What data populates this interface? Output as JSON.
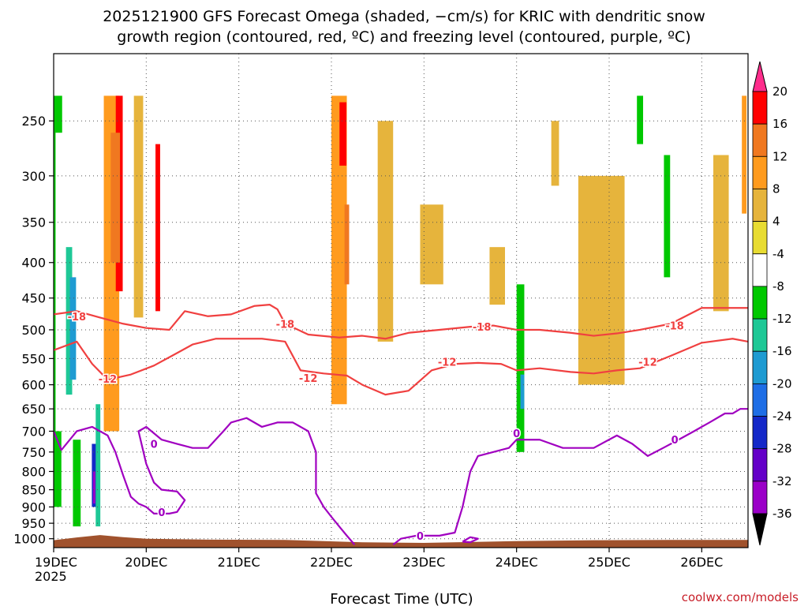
{
  "chart_data": {
    "type": "heatmap",
    "title_line1": "2025121900 GFS Forecast Omega (shaded, −cm/s) for KRIC with dendritic snow",
    "title_line2": "growth region (contoured, red, ºC) and freezing level (contoured, purple, ºC)",
    "xlabel": "Forecast Time (UTC)",
    "ylabel": "",
    "x_unit": "hours since 19DEC2025 00Z",
    "xlim": [
      0,
      180
    ],
    "ylim": [
      1030,
      200
    ],
    "x_ticks": [
      {
        "h": 0,
        "label": "19DEC",
        "sub": "2025"
      },
      {
        "h": 24,
        "label": "20DEC",
        "sub": ""
      },
      {
        "h": 48,
        "label": "21DEC",
        "sub": ""
      },
      {
        "h": 72,
        "label": "22DEC",
        "sub": ""
      },
      {
        "h": 96,
        "label": "23DEC",
        "sub": ""
      },
      {
        "h": 120,
        "label": "24DEC",
        "sub": ""
      },
      {
        "h": 144,
        "label": "25DEC",
        "sub": ""
      },
      {
        "h": 168,
        "label": "26DEC",
        "sub": ""
      }
    ],
    "y_ticks": [
      250,
      300,
      350,
      400,
      450,
      500,
      550,
      600,
      650,
      700,
      750,
      800,
      850,
      900,
      950,
      1000
    ],
    "y_scale": "log",
    "grid": true,
    "colorbar": {
      "levels": [
        20,
        16,
        12,
        8,
        4,
        -4,
        -8,
        -12,
        -16,
        -20,
        -24,
        -28,
        -32,
        -36
      ],
      "colors": [
        "#ff3264",
        "#ff0000",
        "#f07820",
        "#ff9b1e",
        "#e6b43c",
        "#e8dc32",
        "#ffffff",
        "#00c800",
        "#1ec896",
        "#1e9bd2",
        "#1e6ee6",
        "#1428c8",
        "#6400c8",
        "#9b00c8",
        "#a0a0a0",
        "#000000"
      ],
      "top_color": "#ff2d8c",
      "bottom_color": "#000000"
    },
    "omega_regions": [
      {
        "h": 1,
        "p0": 230,
        "p1": 900,
        "v": -12,
        "w": 1.2
      },
      {
        "h": 2,
        "p0": 260,
        "p1": 700,
        "v": -8,
        "w": 1.5
      },
      {
        "h": 4,
        "p0": 380,
        "p1": 620,
        "v": -16,
        "w": 0.8
      },
      {
        "h": 5,
        "p0": 420,
        "p1": 590,
        "v": -20,
        "w": 0.8
      },
      {
        "h": 3,
        "p0": 700,
        "p1": 960,
        "v": -8,
        "w": 1
      },
      {
        "h": 6,
        "p0": 720,
        "p1": 960,
        "v": -12,
        "w": 1
      },
      {
        "h": 10.5,
        "p0": 730,
        "p1": 900,
        "v": -28,
        "w": 0.6
      },
      {
        "h": 10.5,
        "p0": 800,
        "p1": 890,
        "v": -36,
        "w": 0.3
      },
      {
        "h": 11.5,
        "p0": 640,
        "p1": 960,
        "v": -16,
        "w": 0.6
      },
      {
        "h": 9,
        "p0": 230,
        "p1": 540,
        "v": -8,
        "w": 0.8
      },
      {
        "h": 15,
        "p0": 230,
        "p1": 700,
        "v": 8,
        "w": 2
      },
      {
        "h": 17,
        "p0": 230,
        "p1": 440,
        "v": 16,
        "w": 0.9
      },
      {
        "h": 16,
        "p0": 260,
        "p1": 400,
        "v": 12,
        "w": 1.2
      },
      {
        "h": 22,
        "p0": 230,
        "p1": 480,
        "v": 4,
        "w": 1.2
      },
      {
        "h": 27,
        "p0": 270,
        "p1": 470,
        "v": 16,
        "w": 0.6
      },
      {
        "h": 33,
        "p0": 280,
        "p1": 430,
        "v": -8,
        "w": 0.5
      },
      {
        "h": 38,
        "p0": 400,
        "p1": 620,
        "v": -8,
        "w": 0.5
      },
      {
        "h": 60,
        "p0": 690,
        "p1": 780,
        "v": -8,
        "w": 0.5
      },
      {
        "h": 74,
        "p0": 230,
        "p1": 640,
        "v": 8,
        "w": 2
      },
      {
        "h": 75,
        "p0": 235,
        "p1": 290,
        "v": 16,
        "w": 0.9
      },
      {
        "h": 76,
        "p0": 330,
        "p1": 430,
        "v": 12,
        "w": 0.6
      },
      {
        "h": 86,
        "p0": 250,
        "p1": 520,
        "v": 4,
        "w": 2
      },
      {
        "h": 98,
        "p0": 330,
        "p1": 430,
        "v": 4,
        "w": 3
      },
      {
        "h": 115,
        "p0": 380,
        "p1": 460,
        "v": 4,
        "w": 2
      },
      {
        "h": 121,
        "p0": 430,
        "p1": 750,
        "v": -12,
        "w": 1
      },
      {
        "h": 121.5,
        "p0": 580,
        "p1": 650,
        "v": -20,
        "w": 0.5
      },
      {
        "h": 130,
        "p0": 250,
        "p1": 310,
        "v": 4,
        "w": 1
      },
      {
        "h": 142,
        "p0": 300,
        "p1": 600,
        "v": 4,
        "w": 6
      },
      {
        "h": 152,
        "p0": 230,
        "p1": 270,
        "v": -12,
        "w": 0.8
      },
      {
        "h": 149,
        "p0": 660,
        "p1": 760,
        "v": -8,
        "w": 0.6
      },
      {
        "h": 159,
        "p0": 280,
        "p1": 420,
        "v": -12,
        "w": 0.8
      },
      {
        "h": 165,
        "p0": 230,
        "p1": 400,
        "v": -8,
        "w": 0.8
      },
      {
        "h": 173,
        "p0": 280,
        "p1": 470,
        "v": 4,
        "w": 2
      },
      {
        "h": 179,
        "p0": 230,
        "p1": 340,
        "v": 8,
        "w": 0.6
      },
      {
        "h": 178,
        "p0": 680,
        "p1": 720,
        "v": -8,
        "w": 0.6
      }
    ],
    "contours": [
      {
        "name": "-18",
        "color": "#f04040",
        "label": "-18",
        "label_positions": [
          [
            6,
            478
          ],
          [
            60,
            490
          ],
          [
            111,
            495
          ],
          [
            161,
            493
          ]
        ],
        "points": [
          [
            0,
            475
          ],
          [
            6,
            470
          ],
          [
            12,
            480
          ],
          [
            18,
            490
          ],
          [
            24,
            497
          ],
          [
            30,
            500
          ],
          [
            34,
            470
          ],
          [
            40,
            478
          ],
          [
            46,
            475
          ],
          [
            52,
            462
          ],
          [
            56,
            460
          ],
          [
            58,
            467
          ],
          [
            60,
            490
          ],
          [
            66,
            508
          ],
          [
            74,
            513
          ],
          [
            80,
            510
          ],
          [
            86,
            515
          ],
          [
            92,
            505
          ],
          [
            100,
            500
          ],
          [
            108,
            495
          ],
          [
            114,
            493
          ],
          [
            120,
            500
          ],
          [
            126,
            500
          ],
          [
            134,
            505
          ],
          [
            140,
            510
          ],
          [
            146,
            506
          ],
          [
            152,
            500
          ],
          [
            160,
            490
          ],
          [
            168,
            465
          ],
          [
            176,
            465
          ],
          [
            180,
            465
          ]
        ]
      },
      {
        "name": "-12",
        "color": "#f04040",
        "label": "-12",
        "label_positions": [
          [
            14,
            588
          ],
          [
            66,
            587
          ],
          [
            102,
            556
          ],
          [
            154,
            556
          ]
        ],
        "points": [
          [
            0,
            535
          ],
          [
            6,
            520
          ],
          [
            10,
            560
          ],
          [
            14,
            590
          ],
          [
            20,
            580
          ],
          [
            26,
            563
          ],
          [
            32,
            540
          ],
          [
            36,
            525
          ],
          [
            42,
            515
          ],
          [
            48,
            515
          ],
          [
            54,
            515
          ],
          [
            60,
            520
          ],
          [
            64,
            572
          ],
          [
            70,
            578
          ],
          [
            76,
            582
          ],
          [
            80,
            600
          ],
          [
            86,
            620
          ],
          [
            92,
            612
          ],
          [
            98,
            572
          ],
          [
            104,
            560
          ],
          [
            110,
            558
          ],
          [
            116,
            560
          ],
          [
            120,
            572
          ],
          [
            126,
            568
          ],
          [
            134,
            575
          ],
          [
            140,
            578
          ],
          [
            146,
            572
          ],
          [
            152,
            568
          ],
          [
            160,
            545
          ],
          [
            168,
            522
          ],
          [
            176,
            515
          ],
          [
            180,
            520
          ]
        ]
      },
      {
        "name": "0",
        "color": "#a000c0",
        "label": "0",
        "label_positions": [
          [
            26,
            730
          ],
          [
            28,
            915
          ],
          [
            95,
            990
          ],
          [
            120,
            705
          ],
          [
            161,
            720
          ]
        ],
        "points": [
          [
            0,
            700
          ],
          [
            2,
            745
          ],
          [
            6,
            700
          ],
          [
            10,
            690
          ],
          [
            12,
            700
          ],
          [
            14,
            710
          ],
          [
            16,
            750
          ],
          [
            18,
            810
          ],
          [
            20,
            870
          ],
          [
            22,
            890
          ],
          [
            24,
            900
          ],
          [
            26,
            920
          ],
          [
            28,
            920
          ],
          [
            30,
            920
          ],
          [
            32,
            915
          ],
          [
            34,
            880
          ],
          [
            32,
            855
          ],
          [
            28,
            850
          ],
          [
            26,
            830
          ],
          [
            24,
            780
          ],
          [
            22,
            700
          ],
          [
            24,
            690
          ],
          [
            28,
            720
          ],
          [
            32,
            730
          ],
          [
            36,
            740
          ],
          [
            40,
            740
          ],
          [
            44,
            700
          ],
          [
            46,
            680
          ],
          [
            50,
            670
          ],
          [
            54,
            690
          ],
          [
            58,
            680
          ],
          [
            62,
            680
          ],
          [
            66,
            700
          ],
          [
            68,
            750
          ],
          [
            68,
            830
          ],
          [
            68,
            860
          ],
          [
            70,
            900
          ],
          [
            72,
            930
          ],
          [
            74,
            960
          ],
          [
            76,
            990
          ],
          [
            78,
            1020
          ]
        ]
      },
      {
        "name": "0b",
        "color": "#a000c0",
        "label": "",
        "label_positions": [],
        "points": [
          [
            88,
            1020
          ],
          [
            90,
            1000
          ],
          [
            94,
            990
          ],
          [
            100,
            990
          ],
          [
            104,
            980
          ],
          [
            106,
            900
          ],
          [
            108,
            800
          ],
          [
            110,
            760
          ],
          [
            114,
            750
          ],
          [
            118,
            740
          ],
          [
            120,
            720
          ],
          [
            126,
            720
          ],
          [
            132,
            740
          ],
          [
            140,
            740
          ],
          [
            146,
            710
          ],
          [
            150,
            730
          ],
          [
            154,
            760
          ],
          [
            158,
            740
          ],
          [
            162,
            720
          ],
          [
            166,
            700
          ],
          [
            170,
            680
          ],
          [
            174,
            660
          ],
          [
            176,
            660
          ],
          [
            178,
            650
          ],
          [
            180,
            650
          ]
        ]
      },
      {
        "name": "0c",
        "color": "#a000c0",
        "label": "",
        "label_positions": [],
        "points": [
          [
            106,
            1010
          ],
          [
            108,
            995
          ],
          [
            110,
            1000
          ],
          [
            108,
            1012
          ],
          [
            106,
            1010
          ]
        ]
      }
    ],
    "terrain": {
      "color": "#a0522d",
      "points": [
        [
          0,
          1005
        ],
        [
          6,
          996
        ],
        [
          12,
          988
        ],
        [
          18,
          995
        ],
        [
          24,
          1000
        ],
        [
          40,
          1003
        ],
        [
          60,
          1004
        ],
        [
          80,
          1012
        ],
        [
          96,
          1014
        ],
        [
          120,
          1008
        ],
        [
          140,
          1005
        ],
        [
          160,
          1004
        ],
        [
          180,
          1004
        ]
      ]
    }
  },
  "credit": "coolwx.com/models"
}
